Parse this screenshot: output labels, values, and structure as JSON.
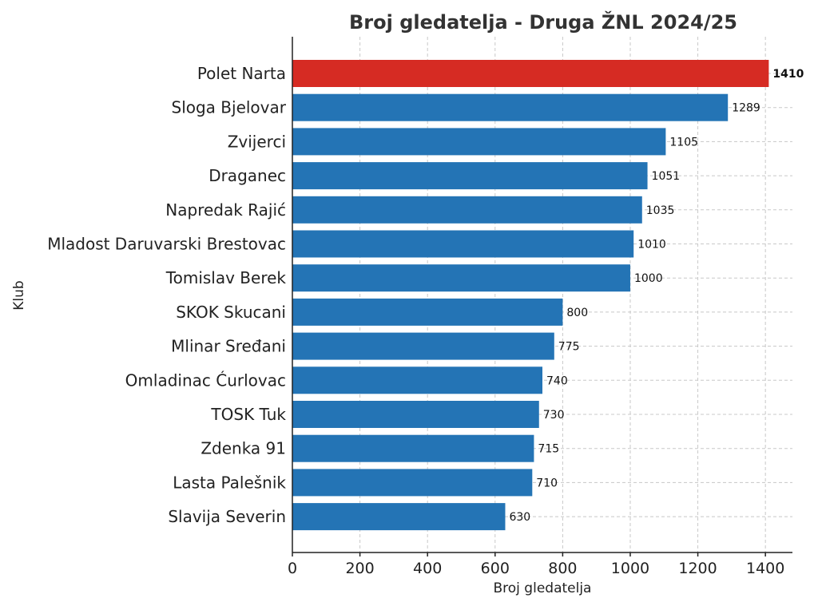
{
  "chart_data": {
    "type": "bar",
    "orientation": "horizontal",
    "title": "Broj gledatelja - Druga ŽNL 2024/25",
    "xlabel": "Broj gledatelja",
    "ylabel": "Klub",
    "xlim": [
      0,
      1480
    ],
    "xticks": [
      0,
      200,
      400,
      600,
      800,
      1000,
      1200,
      1400
    ],
    "grid": true,
    "categories": [
      "Polet Narta",
      "Sloga Bjelovar",
      "Zvijerci",
      "Draganec",
      "Napredak Rajić",
      "Mladost Daruvarski Brestovac",
      "Tomislav Berek",
      "SKOK Skucani",
      "Mlinar Sređani",
      "Omladinac Ćurlovac",
      "TOSK Tuk",
      "Zdenka 91",
      "Lasta Palešnik",
      "Slavija Severin"
    ],
    "values": [
      1410,
      1289,
      1105,
      1051,
      1035,
      1010,
      1000,
      800,
      775,
      740,
      730,
      715,
      710,
      630
    ],
    "highlight_index": 0,
    "colors": {
      "default": "#2474b5",
      "highlight": "#d62b23"
    }
  }
}
